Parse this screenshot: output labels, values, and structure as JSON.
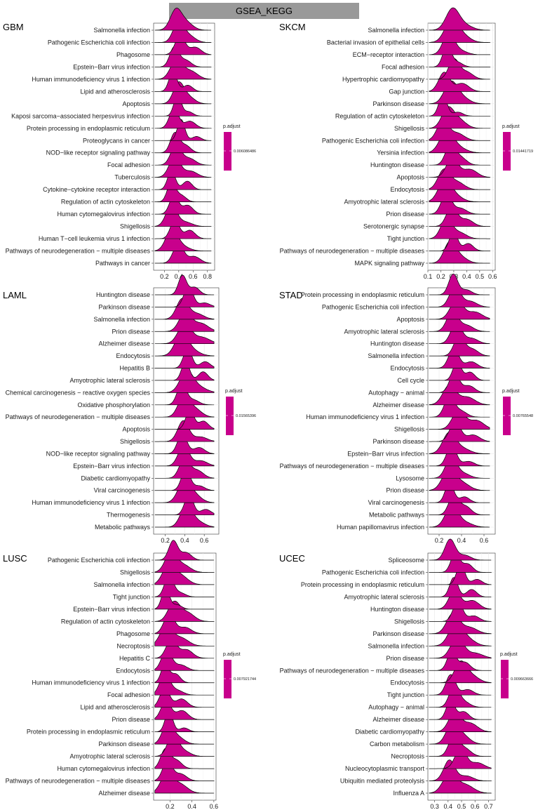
{
  "header": {
    "title": "GSEA_KEGG"
  },
  "colors": {
    "fill": "#C8008C",
    "stroke": "#000000",
    "grid": "#e6e6e6",
    "panel_border": "#333333",
    "header_bg": "#999999"
  },
  "chart_data": [
    {
      "type": "ridgeline",
      "title": "GBM",
      "xlim": [
        0.05,
        0.9
      ],
      "xticks": [
        "0.2",
        "0.4",
        "0.6",
        "0.8"
      ],
      "xtick_values": [
        0.2,
        0.4,
        0.6,
        0.8
      ],
      "legend": {
        "title": "p.adjust",
        "value": "0.006086486",
        "position": "right"
      },
      "categories": [
        "Salmonella infection",
        "Pathogenic Escherichia coli infection",
        "Phagosome",
        "Epstein−Barr virus infection",
        "Human immunodeficiency virus 1 infection",
        "Lipid and atherosclerosis",
        "Apoptosis",
        "Kaposi sarcoma−associated herpesvirus infection",
        "Protein processing in endoplasmic reticulum",
        "Proteoglycans in cancer",
        "NOD−like receptor signaling pathway",
        "Focal adhesion",
        "Tuberculosis",
        "Cytokine−cytokine receptor interaction",
        "Regulation of actin cytoskeleton",
        "Human cytomegalovirus infection",
        "Shigellosis",
        "Human T−cell leukemia virus 1 infection",
        "Pathways of neurodegeneration − multiple diseases",
        "Pathways in cancer"
      ],
      "peak": 0.36,
      "tail": 0.85
    },
    {
      "type": "ridgeline",
      "title": "SKCM",
      "xlim": [
        0.1,
        0.62
      ],
      "xticks": [
        "0.1",
        "0.2",
        "0.3",
        "0.4",
        "0.5",
        "0.6"
      ],
      "xtick_values": [
        0.1,
        0.2,
        0.3,
        0.4,
        0.5,
        0.6
      ],
      "legend": {
        "title": "p.adjust",
        "value": "0.01441719",
        "position": "right"
      },
      "categories": [
        "Salmonella infection",
        "Bacterial invasion of epithelial cells",
        "ECM−receptor interaction",
        "Focal adhesion",
        "Hypertrophic cardiomyopathy",
        "Gap junction",
        "Parkinson disease",
        "Regulation of actin cytoskeleton",
        "Shigellosis",
        "Pathogenic Escherichia coli infection",
        "Yersinia infection",
        "Huntington disease",
        "Apoptosis",
        "Endocytosis",
        "Amyotrophic lateral sclerosis",
        "Prion disease",
        "Serotonergic synapse",
        "Tight junction",
        "Pathways of neurodegeneration − multiple diseases",
        "MAPK signaling pathway"
      ],
      "peak": 0.26,
      "tail": 0.58
    },
    {
      "type": "ridgeline",
      "title": "LAML",
      "xlim": [
        0.08,
        0.75
      ],
      "xticks": [
        "0.2",
        "0.4",
        "0.6"
      ],
      "xtick_values": [
        0.2,
        0.4,
        0.6
      ],
      "legend": {
        "title": "p.adjust",
        "value": "0.01565396",
        "position": "right"
      },
      "categories": [
        "Huntington disease",
        "Parkinson disease",
        "Salmonella infection",
        "Prion disease",
        "Alzheimer disease",
        "Endocytosis",
        "Hepatitis B",
        "Amyotrophic lateral sclerosis",
        "Chemical carcinogenesis − reactive oxygen species",
        "Oxidative phosphorylation",
        "Pathways of neurodegeneration − multiple diseases",
        "Apoptosis",
        "Shigellosis",
        "NOD−like receptor signaling pathway",
        "Epstein−Barr virus infection",
        "Diabetic cardiomyopathy",
        "Viral carcinogenesis",
        "Human immunodeficiency virus 1 infection",
        "Thermogenesis",
        "Metabolic pathways"
      ],
      "peak": 0.42,
      "tail": 0.7
    },
    {
      "type": "ridgeline",
      "title": "STAD",
      "xlim": [
        0.1,
        0.7
      ],
      "xticks": [
        "0.2",
        "0.4",
        "0.6"
      ],
      "xtick_values": [
        0.2,
        0.4,
        0.6
      ],
      "legend": {
        "title": "p.adjust",
        "value": "0.00765548",
        "position": "right"
      },
      "categories": [
        "Protein processing in endoplasmic reticulum",
        "Pathogenic Escherichia coli infection",
        "Apoptosis",
        "Amyotrophic lateral sclerosis",
        "Huntington disease",
        "Salmonella infection",
        "Endocytosis",
        "Cell cycle",
        "Autophagy − animal",
        "Alzheimer disease",
        "Human immunodeficiency virus 1 infection",
        "Shigellosis",
        "Parkinson disease",
        "Epstein−Barr virus infection",
        "Pathways of neurodegeneration − multiple diseases",
        "Lysosome",
        "Prion disease",
        "Viral carcinogenesis",
        "Metabolic pathways",
        "Human papillomavirus infection"
      ],
      "peak": 0.33,
      "tail": 0.65
    },
    {
      "type": "ridgeline",
      "title": "LUSC",
      "xlim": [
        0.05,
        0.62
      ],
      "xticks": [
        "0.2",
        "0.4",
        "0.6"
      ],
      "xtick_values": [
        0.2,
        0.4,
        0.6
      ],
      "legend": {
        "title": "p.adjust",
        "value": "0.007921744",
        "position": "right"
      },
      "categories": [
        "Pathogenic Escherichia coli infection",
        "Shigellosis",
        "Salmonella infection",
        "Tight junction",
        "Epstein−Barr virus infection",
        "Regulation of actin cytoskeleton",
        "Phagosome",
        "Necroptosis",
        "Hepatitis C",
        "Endocytosis",
        "Human immunodeficiency virus 1 infection",
        "Focal adhesion",
        "Lipid and atherosclerosis",
        "Prion disease",
        "Protein processing in endoplasmic reticulum",
        "Parkinson disease",
        "Amyotrophic lateral sclerosis",
        "Human cytomegalovirus infection",
        "Pathways of neurodegeneration − multiple diseases",
        "Alzheimer disease"
      ],
      "peak": 0.2,
      "tail": 0.6
    },
    {
      "type": "ridgeline",
      "title": "UCEC",
      "xlim": [
        0.25,
        0.75
      ],
      "xticks": [
        "0.3",
        "0.4",
        "0.5",
        "0.6",
        "0.7"
      ],
      "xtick_values": [
        0.3,
        0.4,
        0.5,
        0.6,
        0.7
      ],
      "legend": {
        "title": "p.adjust",
        "value": "0.009663666",
        "position": "right"
      },
      "categories": [
        "Spliceosome",
        "Pathogenic Escherichia coli infection",
        "Protein processing in endoplasmic reticulum",
        "Amyotrophic lateral sclerosis",
        "Huntington disease",
        "Shigellosis",
        "Parkinson disease",
        "Salmonella infection",
        "Prion disease",
        "Pathways of neurodegeneration − multiple diseases",
        "Endocytosis",
        "Tight junction",
        "Autophagy − animal",
        "Alzheimer disease",
        "Diabetic cardiomyopathy",
        "Carbon metabolism",
        "Necroptosis",
        "Nucleocytoplasmic transport",
        "Ubiquitin mediated proteolysis",
        "Influenza A"
      ],
      "peak": 0.45,
      "tail": 0.72
    }
  ]
}
